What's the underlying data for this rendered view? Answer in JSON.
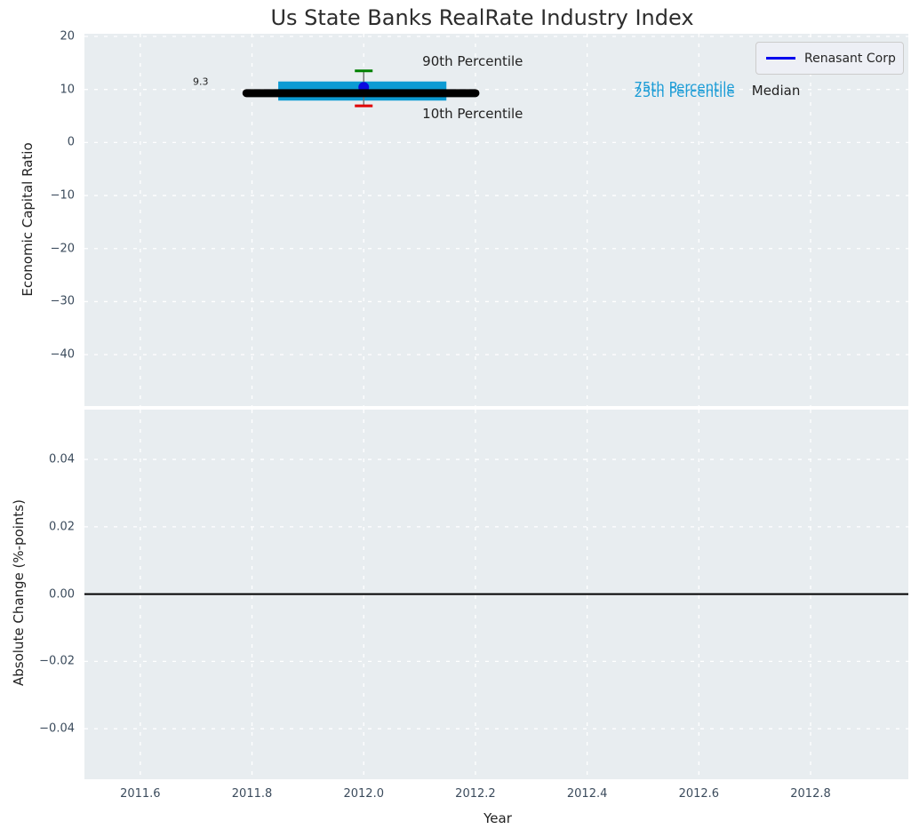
{
  "title": "Us State Banks RealRate Industry Index",
  "legend": {
    "label": "Renasant Corp",
    "line_color": "#0000ee"
  },
  "colors": {
    "figure_bg": "#ffffff",
    "plot_bg": "#e8edf0",
    "grid": "#ffffff",
    "title": "#2d2d2d",
    "tick_label": "#3b4b5c",
    "axis_label": "#222222",
    "median_line": "#000000",
    "iqr_box": "#0d9bd3",
    "percentile_text": "#1b9cd6",
    "p90_cap": "#008000",
    "p10_cap": "#e00000",
    "whisker": "#777777",
    "company_point": "#0a0ae0",
    "zero_line": "#000000"
  },
  "axes": {
    "x": {
      "label": "Year",
      "min": 2011.5,
      "max": 2012.975,
      "ticks": [
        2011.6,
        2011.8,
        2012.0,
        2012.2,
        2012.4,
        2012.6,
        2012.8
      ],
      "tick_labels": [
        "2011.6",
        "2011.8",
        "2012.0",
        "2012.2",
        "2012.4",
        "2012.6",
        "2012.8"
      ]
    },
    "y_top": {
      "label": "Economic Capital Ratio",
      "min": -49.7,
      "max": 20.5,
      "ticks": [
        20,
        10,
        0,
        -10,
        -20,
        -30,
        -40
      ],
      "tick_labels": [
        "20",
        "10",
        "0",
        "−10",
        "−20",
        "−30",
        "−40"
      ]
    },
    "y_bottom": {
      "label": "Absolute Change (%-points)",
      "min": -0.055,
      "max": 0.0548,
      "ticks": [
        0.04,
        0.02,
        0.0,
        -0.02,
        -0.04
      ],
      "tick_labels": [
        "0.04",
        "0.02",
        "0.00",
        "−0.02",
        "−0.04"
      ]
    }
  },
  "chart_data": [
    {
      "type": "box",
      "title": "Us State Banks RealRate Industry Index",
      "ylabel": "Economic Capital Ratio",
      "xlim": [
        2011.5,
        2012.975
      ],
      "ylim": [
        -49.7,
        20.5
      ],
      "grid": true,
      "legend_position": "upper right",
      "industry_distribution": {
        "x_center": 2012.0,
        "median": {
          "value": 9.3,
          "x_span": [
            2011.79,
            2012.2
          ]
        },
        "iqr_box": {
          "p25": 7.9,
          "p75": 11.5,
          "x_span": [
            2011.847,
            2012.148
          ]
        },
        "p90": 13.5,
        "p10": 6.9,
        "cap_half_width_years": 0.016
      },
      "series": [
        {
          "name": "Renasant Corp",
          "marker": "circle",
          "x": [
            2012.0
          ],
          "values": [
            10.4
          ]
        }
      ],
      "annotations": [
        {
          "text": "9.3",
          "x": 2011.708,
          "y": 11.4,
          "size": 11,
          "color_key": "axis_label"
        },
        {
          "text": "90th Percentile",
          "x": 2012.195,
          "y": 15.3,
          "size": 15,
          "color_key": "axis_label"
        },
        {
          "text": "10th Percentile",
          "x": 2012.195,
          "y": 5.5,
          "size": 15,
          "color_key": "axis_label"
        },
        {
          "text": "75th Percentile",
          "x": 2012.574,
          "y": 10.4,
          "size": 15,
          "color_key": "percentile_text"
        },
        {
          "text": "25th Percentile",
          "x": 2012.574,
          "y": 9.5,
          "size": 15,
          "color_key": "percentile_text"
        },
        {
          "text": "Median",
          "x": 2012.738,
          "y": 9.85,
          "size": 15,
          "color_key": "axis_label"
        }
      ]
    },
    {
      "type": "line",
      "xlabel": "Year",
      "ylabel": "Absolute Change (%-points)",
      "xlim": [
        2011.5,
        2012.975
      ],
      "ylim": [
        -0.055,
        0.0548
      ],
      "grid": true,
      "series": [
        {
          "name": "absolute-change-zero-line",
          "y": 0.0,
          "x_span": [
            2011.5,
            2012.975
          ]
        }
      ]
    }
  ]
}
